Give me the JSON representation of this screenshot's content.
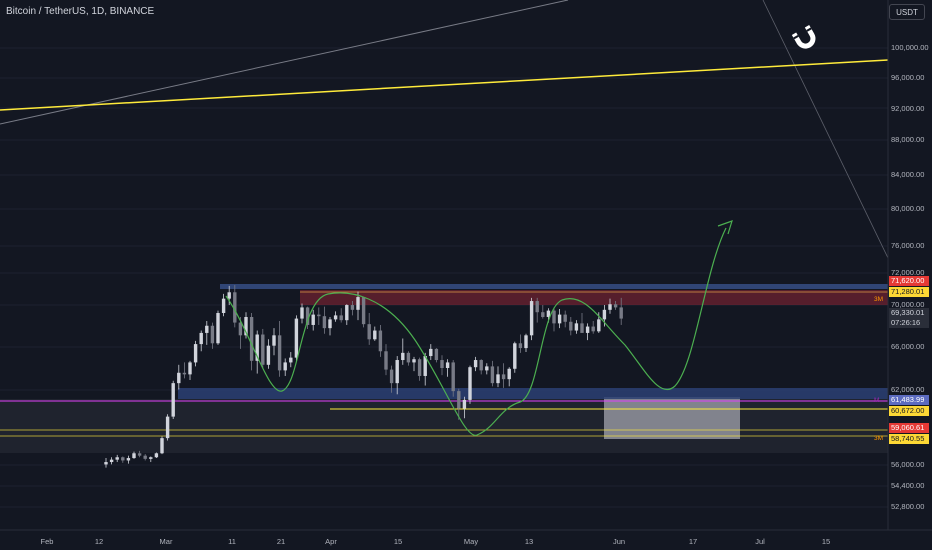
{
  "header": {
    "title": "Bitcoin / TetherUS, 1D, BINANCE"
  },
  "toolbar": {
    "currency_button": "USDT",
    "magnet_icon": "magnet-icon"
  },
  "price_axis": {
    "ticks": [
      "100,000.00",
      "96,000.00",
      "92,000.00",
      "88,000.00",
      "84,000.00",
      "80,000.00",
      "76,000.00",
      "72,000.00",
      "70,000.00",
      "66,000.00",
      "62,000.00",
      "56,000.00",
      "54,400.00",
      "52,800.00"
    ],
    "tags": [
      {
        "label": "71,620.00",
        "bg": "#e53935",
        "fg": "#ffffff"
      },
      {
        "label": "71,280.01",
        "bg": "#fdd835",
        "fg": "#131722"
      },
      {
        "label": "69,330.01",
        "bg": "#2a2e39",
        "fg": "#d1d4dc"
      },
      {
        "label": "07:26:16",
        "bg": "#2a2e39",
        "fg": "#d1d4dc"
      },
      {
        "label": "61,483.99",
        "bg": "#5c6bc0",
        "fg": "#ffffff"
      },
      {
        "label": "60,672.00",
        "bg": "#fdd835",
        "fg": "#131722"
      },
      {
        "label": "59,060.61",
        "bg": "#e53935",
        "fg": "#ffffff"
      },
      {
        "label": "58,740.55",
        "bg": "#fdd835",
        "fg": "#131722"
      }
    ],
    "side_labels": [
      {
        "label": "3M",
        "color": "#ff9800"
      },
      {
        "label": "M",
        "color": "#9c27b0"
      },
      {
        "label": "3M",
        "color": "#ff9800"
      }
    ]
  },
  "time_axis": {
    "ticks": [
      "Feb",
      "12",
      "Mar",
      "11",
      "21",
      "Apr",
      "15",
      "May",
      "13",
      "Jun",
      "17",
      "Jul",
      "15"
    ]
  },
  "colors": {
    "background": "#131722",
    "up_candle": "#d1d4dc",
    "down_candle": "#787b86",
    "trendline": "#ffeb3b",
    "projection": "#4caf50",
    "resistance_zone": "#5c2230",
    "support_zone": "#2b3a66"
  },
  "chart_data": {
    "type": "candlestick",
    "symbol": "Bitcoin / TetherUS",
    "interval": "1D",
    "exchange": "BINANCE",
    "last_price": 69330.01,
    "key_levels": [
      71620.0,
      71280.01,
      61483.99,
      60672.0,
      59060.61,
      58740.55
    ],
    "resistance_zone": [
      70200,
      72000
    ],
    "support_zone": [
      61000,
      62200
    ],
    "ohlc_approx": [
      [
        51000,
        51800,
        50600,
        51300
      ],
      [
        51300,
        51900,
        51000,
        51600
      ],
      [
        51600,
        52200,
        51300,
        51900
      ],
      [
        51900,
        52000,
        51200,
        51500
      ],
      [
        51500,
        52100,
        51100,
        51800
      ],
      [
        51800,
        52600,
        51700,
        52400
      ],
      [
        52400,
        52700,
        51900,
        52100
      ],
      [
        52100,
        52300,
        51500,
        51700
      ],
      [
        51700,
        52000,
        51300,
        51900
      ],
      [
        51900,
        52500,
        51800,
        52400
      ],
      [
        52400,
        54500,
        52300,
        54300
      ],
      [
        54300,
        57300,
        54000,
        57000
      ],
      [
        57000,
        61500,
        56700,
        61200
      ],
      [
        61200,
        63500,
        60400,
        62500
      ],
      [
        62500,
        63800,
        61800,
        62300
      ],
      [
        62300,
        64000,
        61600,
        63800
      ],
      [
        63800,
        66500,
        63300,
        66100
      ],
      [
        66100,
        67800,
        65200,
        67500
      ],
      [
        67500,
        69000,
        66000,
        68400
      ],
      [
        68400,
        68800,
        65500,
        66200
      ],
      [
        66200,
        70300,
        66000,
        70000
      ],
      [
        70000,
        72400,
        69600,
        71800
      ],
      [
        71800,
        73400,
        71000,
        72600
      ],
      [
        72600,
        73500,
        68200,
        68800
      ],
      [
        68800,
        69500,
        65500,
        67200
      ],
      [
        67200,
        70100,
        66800,
        69500
      ],
      [
        69500,
        70000,
        62800,
        64000
      ],
      [
        64000,
        67800,
        62400,
        67300
      ],
      [
        67300,
        68000,
        63100,
        63500
      ],
      [
        63500,
        66700,
        63000,
        65900
      ],
      [
        65900,
        68100,
        64700,
        67200
      ],
      [
        67200,
        69000,
        62000,
        62800
      ],
      [
        62800,
        64300,
        62100,
        63800
      ],
      [
        63800,
        65100,
        63200,
        64400
      ],
      [
        64400,
        69700,
        64000,
        69300
      ],
      [
        69300,
        71200,
        68700,
        70700
      ],
      [
        70700,
        70800,
        68000,
        68500
      ],
      [
        68500,
        70400,
        67800,
        69800
      ],
      [
        69800,
        70700,
        68500,
        69600
      ],
      [
        69600,
        70800,
        67400,
        68100
      ],
      [
        68100,
        69500,
        67200,
        69200
      ],
      [
        69200,
        70200,
        68900,
        69700
      ],
      [
        69700,
        70600,
        68800,
        69100
      ],
      [
        69100,
        71100,
        68500,
        71000
      ],
      [
        71000,
        71500,
        69700,
        70400
      ],
      [
        70400,
        72700,
        69100,
        72000
      ],
      [
        72000,
        72000,
        68200,
        68600
      ],
      [
        68600,
        70000,
        66000,
        66700
      ],
      [
        66700,
        68300,
        66500,
        67800
      ],
      [
        67800,
        68500,
        64500,
        65200
      ],
      [
        65200,
        66100,
        62200,
        62900
      ],
      [
        62900,
        63400,
        60000,
        61200
      ],
      [
        61200,
        64600,
        59800,
        64100
      ],
      [
        64100,
        66800,
        63500,
        65000
      ],
      [
        65000,
        65200,
        63400,
        63800
      ],
      [
        63800,
        64500,
        62700,
        64200
      ],
      [
        64200,
        64400,
        61500,
        62100
      ],
      [
        62100,
        65000,
        60900,
        64600
      ],
      [
        64600,
        66100,
        64100,
        65500
      ],
      [
        65500,
        65600,
        63800,
        64100
      ],
      [
        64100,
        64700,
        62200,
        63100
      ],
      [
        63100,
        64200,
        62000,
        63800
      ],
      [
        63800,
        64100,
        59500,
        60200
      ],
      [
        60200,
        60500,
        56600,
        58000
      ],
      [
        58000,
        59500,
        56800,
        59100
      ],
      [
        59100,
        63400,
        58600,
        63200
      ],
      [
        63200,
        64500,
        62700,
        64100
      ],
      [
        64100,
        64200,
        62300,
        62800
      ],
      [
        62800,
        63700,
        62300,
        63300
      ],
      [
        63300,
        64000,
        60800,
        61200
      ],
      [
        61200,
        63300,
        60700,
        62300
      ],
      [
        62300,
        63700,
        60600,
        61700
      ],
      [
        61700,
        63200,
        60800,
        63000
      ],
      [
        63000,
        66400,
        62500,
        66200
      ],
      [
        66200,
        67300,
        65000,
        65600
      ],
      [
        65600,
        67400,
        65100,
        67200
      ],
      [
        67200,
        71900,
        66600,
        71500
      ],
      [
        71500,
        71900,
        68800,
        70100
      ],
      [
        70100,
        71000,
        69300,
        69500
      ],
      [
        69500,
        70600,
        68800,
        70300
      ],
      [
        70300,
        70700,
        67700,
        68700
      ],
      [
        68700,
        70500,
        68100,
        69800
      ],
      [
        69800,
        70300,
        68200,
        68900
      ],
      [
        68900,
        69500,
        67200,
        67800
      ],
      [
        67800,
        69100,
        67400,
        68700
      ],
      [
        68700,
        70000,
        67800,
        67500
      ],
      [
        67500,
        68700,
        66600,
        68300
      ],
      [
        68300,
        69000,
        67400,
        67700
      ],
      [
        67700,
        70100,
        67500,
        69200
      ],
      [
        69200,
        71000,
        68300,
        70400
      ],
      [
        70400,
        71800,
        69900,
        71100
      ],
      [
        71100,
        71500,
        70400,
        70700
      ],
      [
        70700,
        71900,
        68500,
        69300
      ]
    ]
  }
}
